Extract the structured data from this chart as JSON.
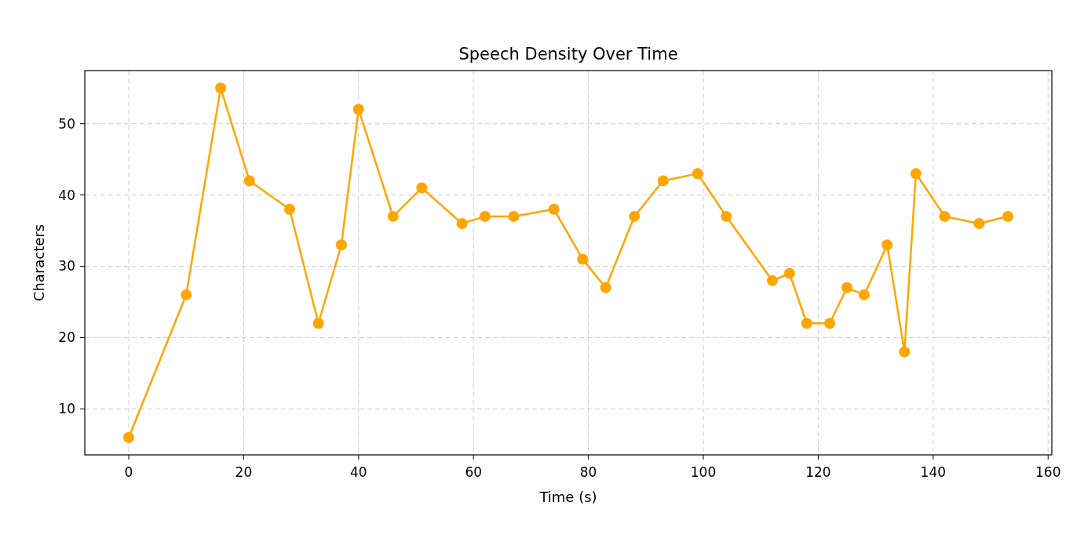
{
  "chart_data": {
    "type": "line",
    "title": "Speech Density Over Time",
    "xlabel": "Time (s)",
    "ylabel": "Characters",
    "x": [
      0,
      10,
      16,
      21,
      28,
      33,
      37,
      40,
      46,
      51,
      58,
      62,
      67,
      74,
      79,
      83,
      88,
      93,
      99,
      104,
      112,
      115,
      118,
      122,
      125,
      128,
      132,
      135,
      137,
      142,
      148,
      153
    ],
    "series": [
      {
        "color": "#ffa500",
        "values": [
          6,
          26,
          55,
          42,
          38,
          22,
          33,
          52,
          37,
          41,
          36,
          37,
          37,
          38,
          31,
          27,
          37,
          42,
          43,
          37,
          28,
          29,
          22,
          22,
          27,
          26,
          33,
          18,
          43,
          37,
          36,
          37
        ]
      }
    ],
    "xlim": [
      -7.65,
      160.65
    ],
    "xticks": [
      0,
      20,
      40,
      60,
      80,
      100,
      120,
      140,
      160
    ],
    "ylim": [
      3.55,
      57.45
    ],
    "yticks": [
      10,
      20,
      30,
      40,
      50
    ],
    "grid": true,
    "marker": "circle",
    "line_style": "solid"
  }
}
